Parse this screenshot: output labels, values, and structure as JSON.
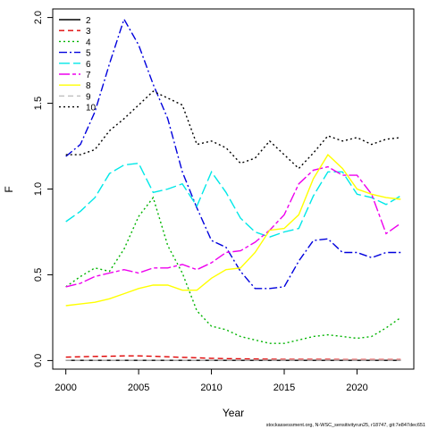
{
  "chart_data": {
    "type": "line",
    "xlabel": "Year",
    "ylabel": "F",
    "xlim": [
      1999.1,
      2023.9
    ],
    "ylim": [
      -0.05,
      2.05
    ],
    "xticks": [
      "2000",
      "2005",
      "2010",
      "2015",
      "2020"
    ],
    "yticks": [
      "0.0",
      "0.5",
      "1.0",
      "1.5",
      "2.0"
    ],
    "legend_position": "top-left",
    "grid": false,
    "caption": "stockassessment.org, N-WSC_sensitivityrun25, r18747, git:7e847dec651",
    "x": [
      2000,
      2001,
      2002,
      2003,
      2004,
      2005,
      2006,
      2007,
      2008,
      2009,
      2010,
      2011,
      2012,
      2013,
      2014,
      2015,
      2016,
      2017,
      2018,
      2019,
      2020,
      2021,
      2022,
      2023
    ],
    "series": [
      {
        "name": "2",
        "color": "#000000",
        "dash": "solid",
        "values": [
          0.001,
          0.001,
          0.001,
          0.001,
          0.001,
          0.001,
          0.001,
          0.001,
          0.001,
          0.001,
          0.001,
          0.001,
          0.001,
          0.001,
          0.001,
          0.001,
          0.001,
          0.001,
          0.001,
          0.001,
          0.001,
          0.001,
          0.001,
          0.001
        ]
      },
      {
        "name": "3",
        "color": "#df0000",
        "dash": "6,4",
        "values": [
          0.02,
          0.022,
          0.024,
          0.025,
          0.027,
          0.027,
          0.025,
          0.022,
          0.019,
          0.016,
          0.013,
          0.011,
          0.01,
          0.009,
          0.008,
          0.007,
          0.007,
          0.007,
          0.007,
          0.006,
          0.006,
          0.006,
          0.006,
          0.006
        ]
      },
      {
        "name": "4",
        "color": "#00b400",
        "dash": "2,3",
        "values": [
          0.43,
          0.49,
          0.54,
          0.52,
          0.65,
          0.84,
          0.95,
          0.67,
          0.51,
          0.29,
          0.2,
          0.18,
          0.14,
          0.12,
          0.1,
          0.1,
          0.12,
          0.14,
          0.15,
          0.14,
          0.13,
          0.14,
          0.19,
          0.25
        ]
      },
      {
        "name": "5",
        "color": "#0000dd",
        "dash": "9,3,2,3",
        "values": [
          1.19,
          1.26,
          1.45,
          1.73,
          1.99,
          1.84,
          1.61,
          1.41,
          1.1,
          0.89,
          0.7,
          0.66,
          0.52,
          0.42,
          0.42,
          0.43,
          0.58,
          0.7,
          0.71,
          0.63,
          0.63,
          0.6,
          0.63,
          0.63
        ]
      },
      {
        "name": "6",
        "color": "#00e8e8",
        "dash": "12,4",
        "values": [
          0.81,
          0.87,
          0.95,
          1.09,
          1.14,
          1.15,
          0.98,
          1.0,
          1.03,
          0.9,
          1.1,
          0.98,
          0.83,
          0.75,
          0.72,
          0.75,
          0.77,
          0.96,
          1.1,
          1.1,
          0.97,
          0.95,
          0.91,
          0.96
        ]
      },
      {
        "name": "7",
        "color": "#ee00ee",
        "dash": "12,3,4,3",
        "values": [
          0.43,
          0.45,
          0.49,
          0.51,
          0.53,
          0.51,
          0.54,
          0.54,
          0.56,
          0.53,
          0.57,
          0.63,
          0.64,
          0.69,
          0.76,
          0.85,
          1.03,
          1.11,
          1.13,
          1.08,
          1.08,
          0.97,
          0.74,
          0.8
        ]
      },
      {
        "name": "8",
        "color": "#ffff00",
        "dash": "solid",
        "values": [
          0.32,
          0.33,
          0.34,
          0.36,
          0.39,
          0.42,
          0.44,
          0.44,
          0.41,
          0.41,
          0.48,
          0.53,
          0.54,
          0.63,
          0.76,
          0.77,
          0.85,
          1.06,
          1.2,
          1.12,
          1.0,
          0.97,
          0.95,
          0.94
        ]
      },
      {
        "name": "9",
        "color": "#bebebe",
        "dash": "6,4",
        "values": [
          0.002,
          0.002,
          0.002,
          0.002,
          0.002,
          0.002,
          0.002,
          0.002,
          0.002,
          0.002,
          0.002,
          0.002,
          0.002,
          0.002,
          0.002,
          0.002,
          0.002,
          0.002,
          0.002,
          0.002,
          0.002,
          0.002,
          0.002,
          0.002
        ]
      },
      {
        "name": "10",
        "color": "#000000",
        "dash": "2,3",
        "values": [
          1.2,
          1.2,
          1.23,
          1.34,
          1.41,
          1.49,
          1.57,
          1.53,
          1.49,
          1.26,
          1.28,
          1.24,
          1.15,
          1.18,
          1.28,
          1.2,
          1.12,
          1.21,
          1.31,
          1.28,
          1.3,
          1.26,
          1.29,
          1.3
        ]
      }
    ]
  }
}
